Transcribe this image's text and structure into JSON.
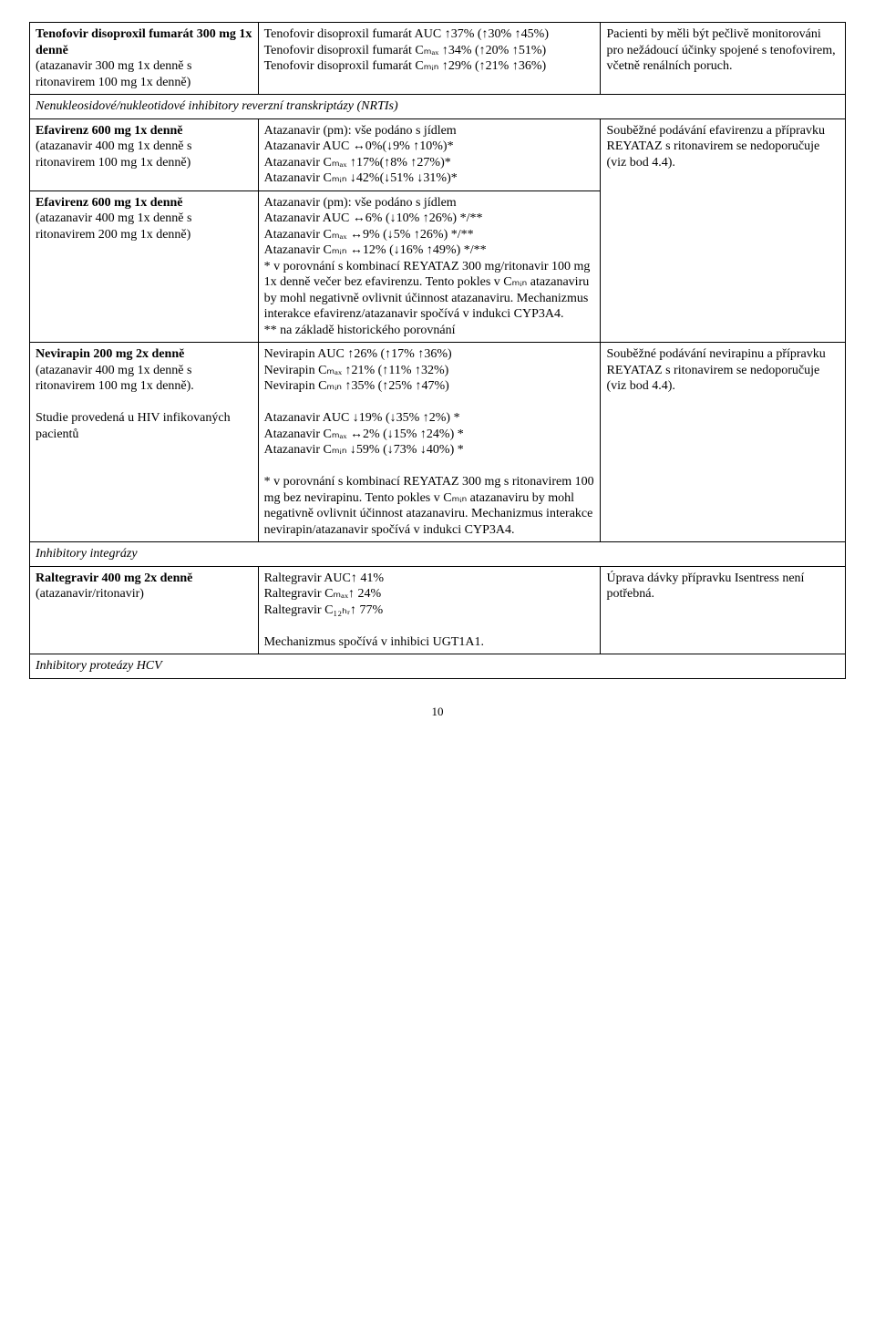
{
  "rows": [
    {
      "c1_bold": "Tenofovir disoproxil fumarát 300 mg 1x denně",
      "c1_rest": "(atazanavir 300 mg 1x denně s ritonavirem 100 mg 1x denně)",
      "c2": "Tenofovir disoproxil fumarát AUC ↑37% (↑30% ↑45%)\nTenofovir disoproxil fumarát Cₘₐₓ ↑34% (↑20% ↑51%)\nTenofovir disoproxil fumarát Cₘᵢₙ ↑29% (↑21% ↑36%)",
      "c3": "Pacienti by měli být pečlivě monitorováni pro nežádoucí účinky spojené s tenofovirem, včetně renálních poruch."
    }
  ],
  "section1": "Nenukleosidové/nukleotidové inhibitory reverzní transkriptázy (NRTIs)",
  "efv1": {
    "c1_bold": "Efavirenz 600 mg 1x denně",
    "c1_rest": "(atazanavir 400 mg 1x denně s ritonavirem 100 mg 1x denně)",
    "c2": "Atazanavir (pm): vše podáno s jídlem\nAtazanavir AUC ↔0%(↓9% ↑10%)*\nAtazanavir Cₘₐₓ ↑17%(↑8% ↑27%)*\nAtazanavir Cₘᵢₙ ↓42%(↓51% ↓31%)*",
    "c3": "Souběžné podávání efavirenzu a přípravku REYATAZ s ritonavirem se nedoporučuje (viz bod 4.4)."
  },
  "efv2": {
    "c1_bold": "Efavirenz 600 mg 1x denně",
    "c1_rest": "(atazanavir 400 mg 1x denně s ritonavirem 200 mg 1x denně)",
    "c2": "Atazanavir (pm): vše podáno s jídlem\nAtazanavir AUC ↔6% (↓10% ↑26%) */**\nAtazanavir Cₘₐₓ ↔9% (↓5% ↑26%) */**\nAtazanavir Cₘᵢₙ ↔12% (↓16% ↑49%) */**\n* v porovnání s kombinací REYATAZ 300 mg/ritonavir 100 mg 1x denně večer bez efavirenzu. Tento pokles v Cₘᵢₙ atazanaviru by mohl negativně ovlivnit účinnost atazanaviru. Mechanizmus interakce efavirenz/atazanavir spočívá v indukci CYP3A4.\n** na základě historického porovnání"
  },
  "nvp": {
    "c1_bold": "Nevirapin 200 mg 2x denně",
    "c1_rest": "(atazanavir 400 mg 1x denně s ritonavirem 100 mg 1x denně).",
    "c1_extra": "Studie provedená u HIV infikovaných pacientů",
    "c2": "Nevirapin AUC ↑26% (↑17% ↑36%)\nNevirapin Cₘₐₓ ↑21% (↑11% ↑32%)\nNevirapin Cₘᵢₙ ↑35% (↑25% ↑47%)\n\nAtazanavir AUC ↓19% (↓35% ↑2%) *\nAtazanavir Cₘₐₓ ↔2% (↓15% ↑24%) *\nAtazanavir Cₘᵢₙ ↓59% (↓73% ↓40%) *\n\n* v porovnání s kombinací REYATAZ 300 mg s ritonavirem 100 mg bez nevirapinu. Tento pokles v Cₘᵢₙ atazanaviru by mohl negativně ovlivnit účinnost atazanaviru. Mechanizmus interakce nevirapin/atazanavir spočívá v indukci CYP3A4.",
    "c3": "Souběžné podávání nevirapinu a přípravku REYATAZ s ritonavirem se nedoporučuje (viz bod 4.4)."
  },
  "section2": "Inhibitory integrázy",
  "ral": {
    "c1_bold": "Raltegravir 400 mg 2x denně",
    "c1_rest": "(atazanavir/ritonavir)",
    "c2": "Raltegravir AUC↑ 41%\nRaltegravir Cₘₐₓ↑ 24%\nRaltegravir C₁₂ₕᵣ↑ 77%\n\nMechanizmus spočívá v inhibici UGT1A1.",
    "c3": "Úprava dávky přípravku Isentress není potřebná."
  },
  "section3": "Inhibitory proteázy HCV",
  "page": "10"
}
